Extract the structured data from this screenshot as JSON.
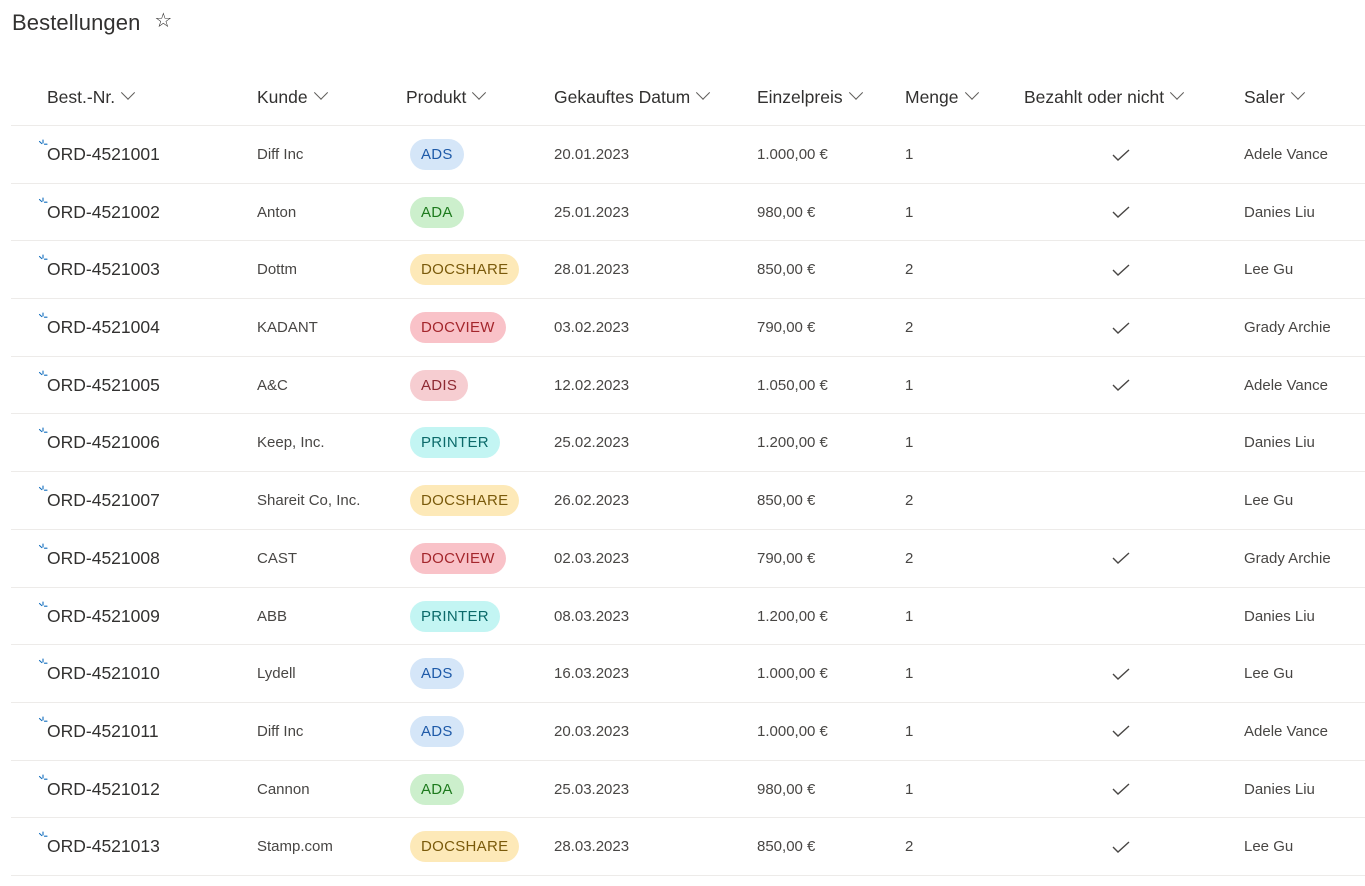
{
  "page": {
    "title": "Bestellungen"
  },
  "columns": [
    "Best.-Nr.",
    "Kunde",
    "Produkt",
    "Gekauftes Datum",
    "Einzelpreis",
    "Menge",
    "Bezahlt oder nicht",
    "Saler"
  ],
  "product_colors": {
    "ADS": {
      "bg": "#d5e6f8",
      "fg": "#1e5aa8"
    },
    "ADA": {
      "bg": "#ccefcc",
      "fg": "#1d7a1d"
    },
    "DOCSHARE": {
      "bg": "#fde9b8",
      "fg": "#7a5a0b"
    },
    "DOCVIEW": {
      "bg": "#f9c2c8",
      "fg": "#a4262c"
    },
    "ADIS": {
      "bg": "#f6cdd1",
      "fg": "#8e2a33"
    },
    "PRINTER": {
      "bg": "#c3f5f3",
      "fg": "#0b6a6a"
    }
  },
  "rows": [
    {
      "id": "ORD-4521001",
      "kunde": "Diff Inc",
      "produkt": "ADS",
      "datum": "20.01.2023",
      "preis": "1.000,00 €",
      "menge": "1",
      "bezahlt": true,
      "saler": "Adele Vance"
    },
    {
      "id": "ORD-4521002",
      "kunde": "Anton",
      "produkt": "ADA",
      "datum": "25.01.2023",
      "preis": "980,00 €",
      "menge": "1",
      "bezahlt": true,
      "saler": "Danies Liu"
    },
    {
      "id": "ORD-4521003",
      "kunde": "Dottm",
      "produkt": "DOCSHARE",
      "datum": "28.01.2023",
      "preis": "850,00 €",
      "menge": "2",
      "bezahlt": true,
      "saler": "Lee Gu"
    },
    {
      "id": "ORD-4521004",
      "kunde": "KADANT",
      "produkt": "DOCVIEW",
      "datum": "03.02.2023",
      "preis": "790,00 €",
      "menge": "2",
      "bezahlt": true,
      "saler": "Grady Archie"
    },
    {
      "id": "ORD-4521005",
      "kunde": "A&C",
      "produkt": "ADIS",
      "datum": "12.02.2023",
      "preis": "1.050,00 €",
      "menge": "1",
      "bezahlt": true,
      "saler": "Adele Vance"
    },
    {
      "id": "ORD-4521006",
      "kunde": "Keep, Inc.",
      "produkt": "PRINTER",
      "datum": "25.02.2023",
      "preis": "1.200,00 €",
      "menge": "1",
      "bezahlt": false,
      "saler": "Danies Liu"
    },
    {
      "id": "ORD-4521007",
      "kunde": "Shareit Co, Inc.",
      "produkt": "DOCSHARE",
      "datum": "26.02.2023",
      "preis": "850,00 €",
      "menge": "2",
      "bezahlt": false,
      "saler": "Lee Gu"
    },
    {
      "id": "ORD-4521008",
      "kunde": "CAST",
      "produkt": "DOCVIEW",
      "datum": "02.03.2023",
      "preis": "790,00 €",
      "menge": "2",
      "bezahlt": true,
      "saler": "Grady Archie"
    },
    {
      "id": "ORD-4521009",
      "kunde": "ABB",
      "produkt": "PRINTER",
      "datum": "08.03.2023",
      "preis": "1.200,00 €",
      "menge": "1",
      "bezahlt": false,
      "saler": "Danies Liu"
    },
    {
      "id": "ORD-4521010",
      "kunde": "Lydell",
      "produkt": "ADS",
      "datum": "16.03.2023",
      "preis": "1.000,00 €",
      "menge": "1",
      "bezahlt": true,
      "saler": "Lee Gu"
    },
    {
      "id": "ORD-4521011",
      "kunde": "Diff Inc",
      "produkt": "ADS",
      "datum": "20.03.2023",
      "preis": "1.000,00 €",
      "menge": "1",
      "bezahlt": true,
      "saler": "Adele Vance"
    },
    {
      "id": "ORD-4521012",
      "kunde": "Cannon",
      "produkt": "ADA",
      "datum": "25.03.2023",
      "preis": "980,00 €",
      "menge": "1",
      "bezahlt": true,
      "saler": "Danies Liu"
    },
    {
      "id": "ORD-4521013",
      "kunde": "Stamp.com",
      "produkt": "DOCSHARE",
      "datum": "28.03.2023",
      "preis": "850,00 €",
      "menge": "2",
      "bezahlt": true,
      "saler": "Lee Gu"
    }
  ]
}
